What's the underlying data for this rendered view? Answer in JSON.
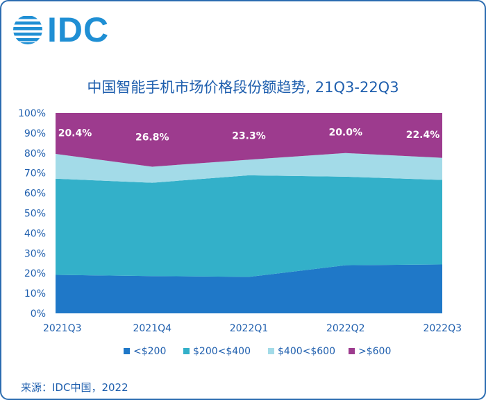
{
  "logo": {
    "text": "IDC"
  },
  "source": "来源：IDC中国，2022",
  "chart_data": {
    "type": "area",
    "stacked": true,
    "title": "中国智能手机市场价格段份额趋势, 21Q3-22Q3",
    "categories": [
      "2021Q3",
      "2021Q4",
      "2022Q1",
      "2022Q2",
      "2022Q3"
    ],
    "y_ticks": [
      "0%",
      "10%",
      "20%",
      "30%",
      "40%",
      "50%",
      "60%",
      "70%",
      "80%",
      "90%",
      "100%"
    ],
    "ylim": [
      0,
      100
    ],
    "series": [
      {
        "name": "<$200",
        "color": "#1f78c8",
        "values": [
          19.2,
          18.6,
          18.2,
          24.0,
          24.4
        ]
      },
      {
        "name": "$200<$400",
        "color": "#33b0c9",
        "values": [
          48.0,
          46.6,
          50.7,
          44.2,
          42.2
        ]
      },
      {
        "name": "$400<$600",
        "color": "#a3dbe8",
        "values": [
          12.4,
          8.0,
          7.8,
          11.8,
          11.0
        ]
      },
      {
        "name": ">$600",
        "color": "#9d3b8e",
        "values": [
          20.4,
          26.8,
          23.3,
          20.0,
          22.4
        ]
      }
    ],
    "data_labels": [
      "20.4%",
      "26.8%",
      "23.3%",
      "20.0%",
      "22.4%"
    ],
    "legend_position": "bottom"
  }
}
